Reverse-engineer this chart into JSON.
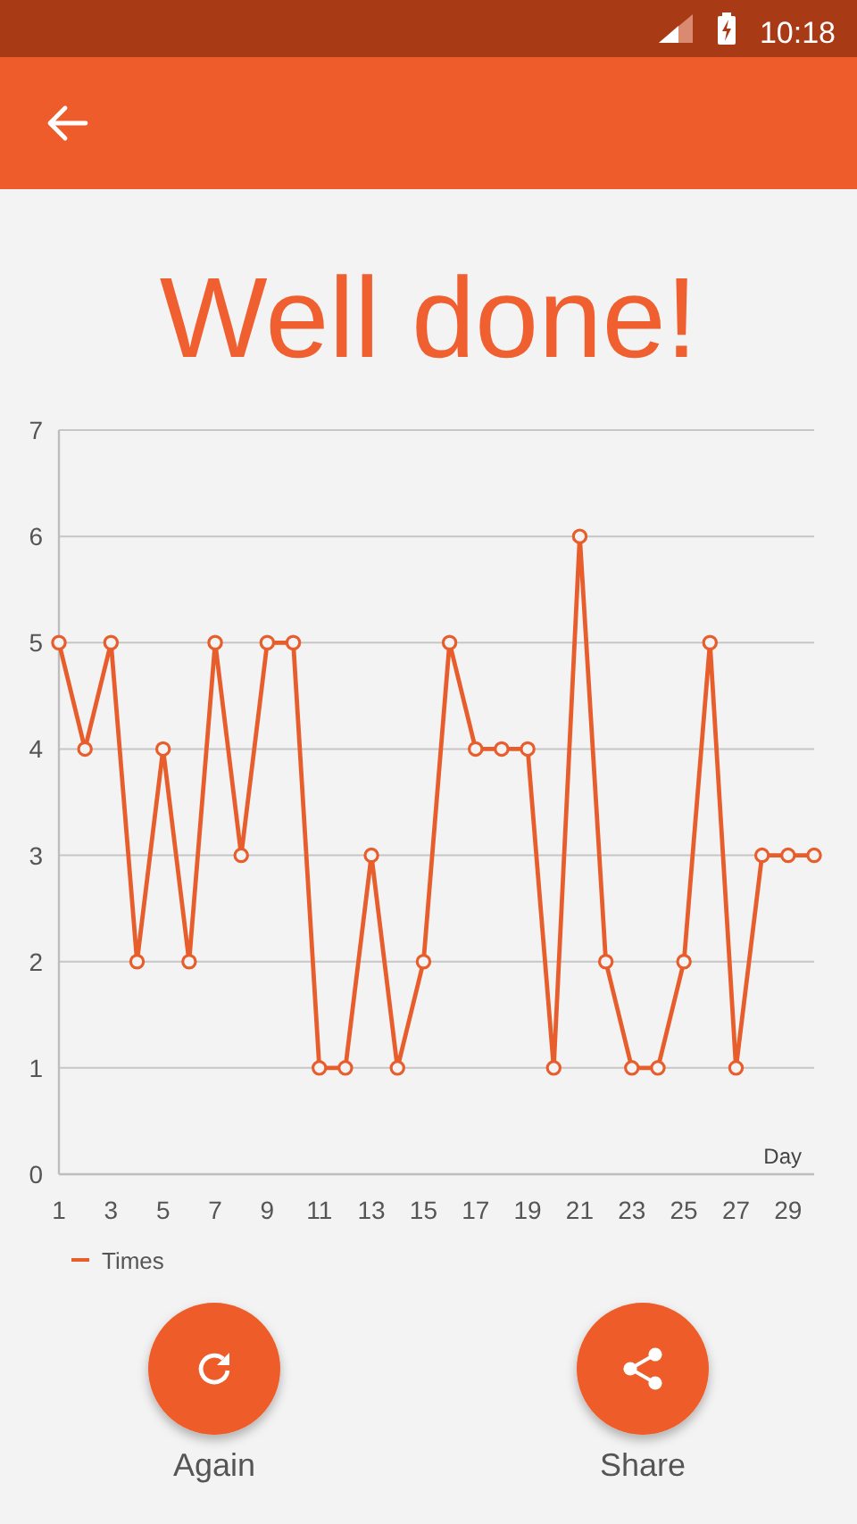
{
  "chart_data": {
    "type": "line",
    "title": "Well done!",
    "xlabel": "Day",
    "x": [
      1,
      2,
      3,
      4,
      5,
      6,
      7,
      8,
      9,
      10,
      11,
      12,
      13,
      14,
      15,
      16,
      17,
      18,
      19,
      20,
      21,
      22,
      23,
      24,
      25,
      26,
      27,
      28,
      29,
      30
    ],
    "series": [
      {
        "name": "Times",
        "color": "#e85d2c",
        "values": [
          5,
          4,
          5,
          2,
          4,
          2,
          5,
          3,
          5,
          5,
          1,
          1,
          3,
          1,
          2,
          5,
          4,
          4,
          4,
          1,
          6,
          2,
          1,
          1,
          2,
          5,
          1,
          3,
          3,
          3
        ]
      }
    ],
    "xlim": [
      1,
      30
    ],
    "xticks": [
      1,
      3,
      5,
      7,
      9,
      11,
      13,
      15,
      17,
      19,
      21,
      23,
      25,
      27,
      29
    ],
    "ylim": [
      0,
      7
    ],
    "yticks": [
      0,
      1,
      2,
      3,
      4,
      5,
      6,
      7
    ],
    "grid": "y",
    "legend": "bottom left",
    "marker": "circle",
    "line_style": "solid",
    "annotations": [
      "10:18",
      "Again",
      "Share"
    ]
  }
}
